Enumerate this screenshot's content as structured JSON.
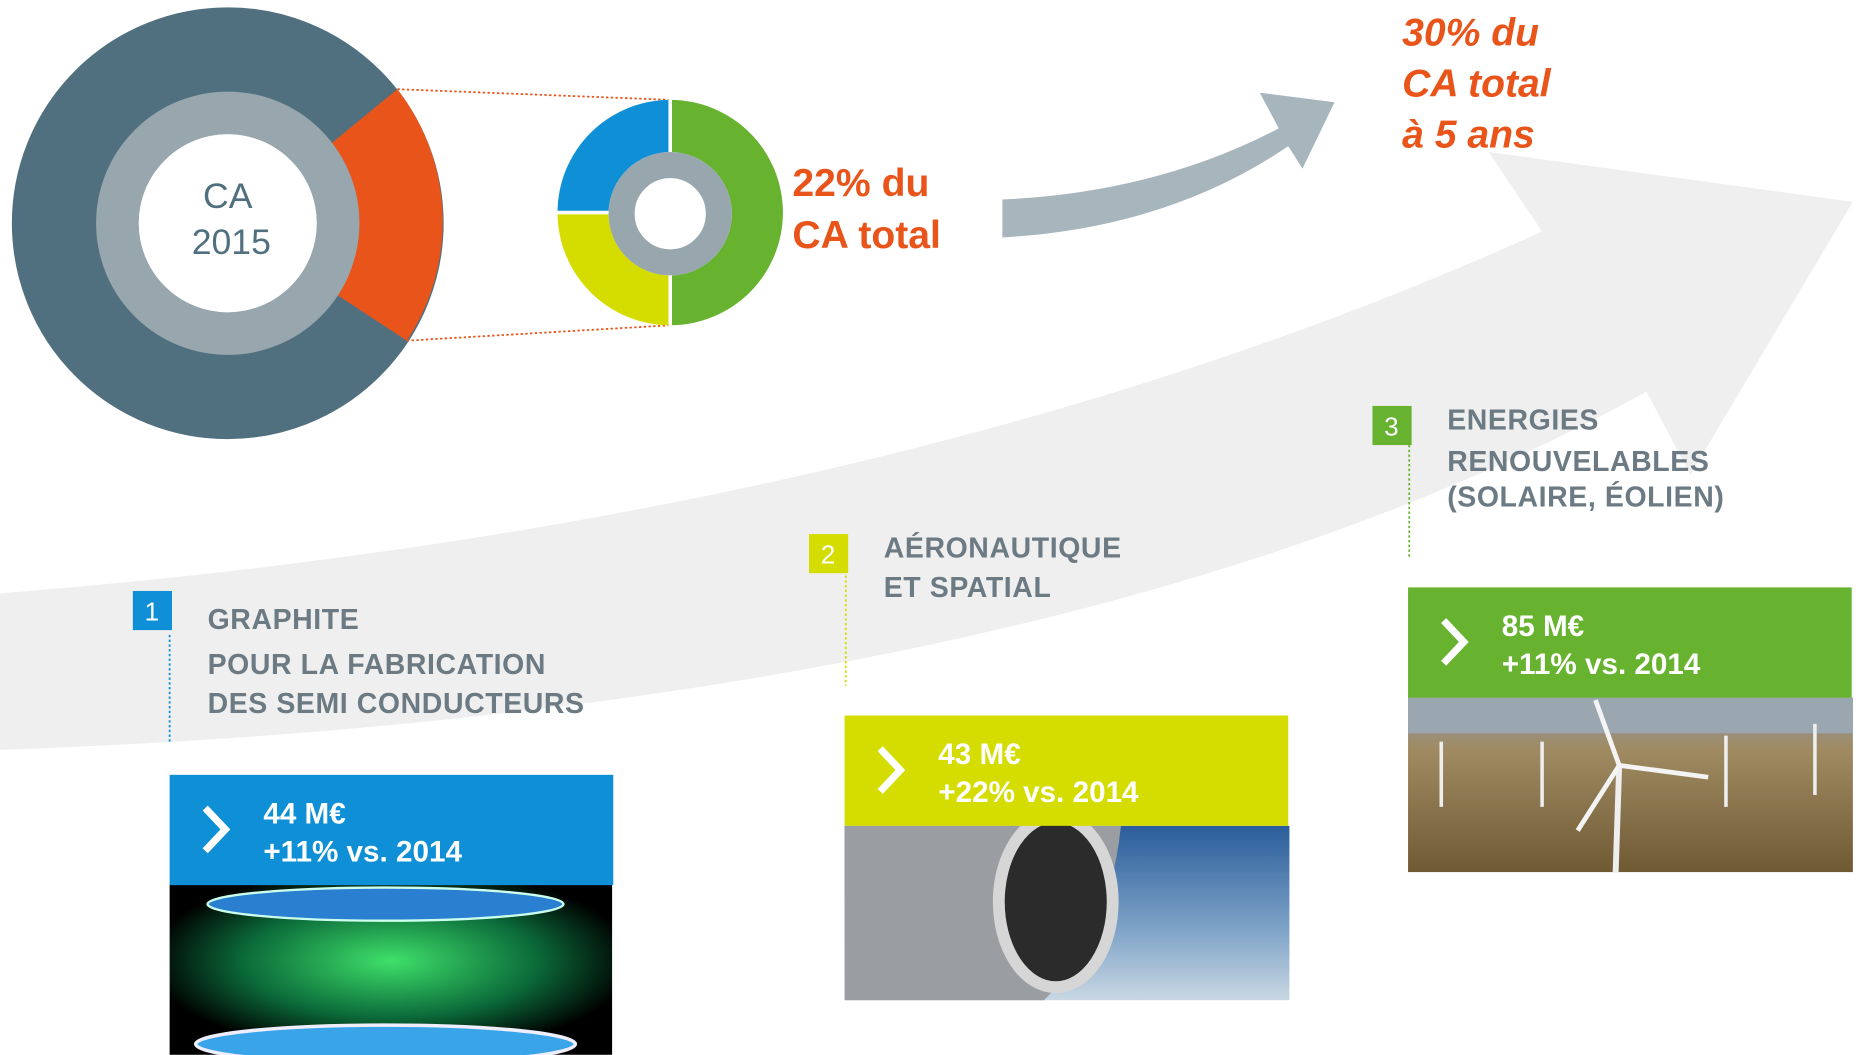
{
  "donut": {
    "center": [
      "CA",
      "2015"
    ]
  },
  "share_2015": [
    "22% du",
    "CA total"
  ],
  "target": [
    "30% du",
    "CA total",
    "à 5 ans"
  ],
  "segments": [
    {
      "number": "1",
      "title": [
        "GRAPHITE",
        "POUR LA FABRICATION",
        "DES SEMI CONDUCTEURS"
      ],
      "amount": "44 M€",
      "growth": "+11% vs. 2014"
    },
    {
      "number": "2",
      "title": [
        "AÉRONAUTIQUE",
        "ET SPATIAL"
      ],
      "amount": "43 M€",
      "growth": "+22% vs. 2014"
    },
    {
      "number": "3",
      "title": [
        "ENERGIES",
        "RENOUVELABLES",
        "(SOLAIRE, ÉOLIEN)"
      ],
      "amount": "85 M€",
      "growth": "+11% vs. 2014"
    }
  ]
}
